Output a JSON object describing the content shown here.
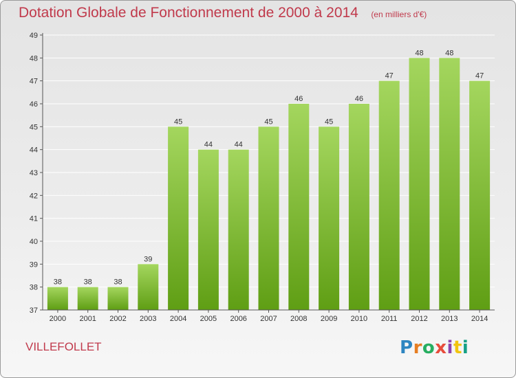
{
  "header": {
    "title": "Dotation Globale de Fonctionnement de 2000 à 2014",
    "unit": "(en milliers d'€)"
  },
  "commune": "VILLEFOLLET",
  "logo": {
    "text": "Proxiti",
    "letter_colors": [
      "#2e86c1",
      "#e67e22",
      "#27ae60",
      "#e74c3c",
      "#8e44ad",
      "#f1c40f",
      "#16a085"
    ]
  },
  "colors": {
    "accent_text": "#c0394b",
    "bar_top": "#a4d65e",
    "bar_bottom": "#5f9e14",
    "grid": "#ffffff"
  },
  "chart_data": {
    "type": "bar",
    "categories": [
      "2000",
      "2001",
      "2002",
      "2003",
      "2004",
      "2005",
      "2006",
      "2007",
      "2008",
      "2009",
      "2010",
      "2011",
      "2012",
      "2013",
      "2014"
    ],
    "values": [
      38,
      38,
      38,
      39,
      45,
      44,
      44,
      45,
      46,
      45,
      46,
      47,
      48,
      48,
      47
    ],
    "title": "Dotation Globale de Fonctionnement de 2000 à 2014",
    "xlabel": "",
    "ylabel": "",
    "ylim": [
      37,
      49
    ],
    "yticks": [
      37,
      38,
      39,
      40,
      41,
      42,
      43,
      44,
      45,
      46,
      47,
      48,
      49
    ],
    "grid": true,
    "data_labels": true
  }
}
